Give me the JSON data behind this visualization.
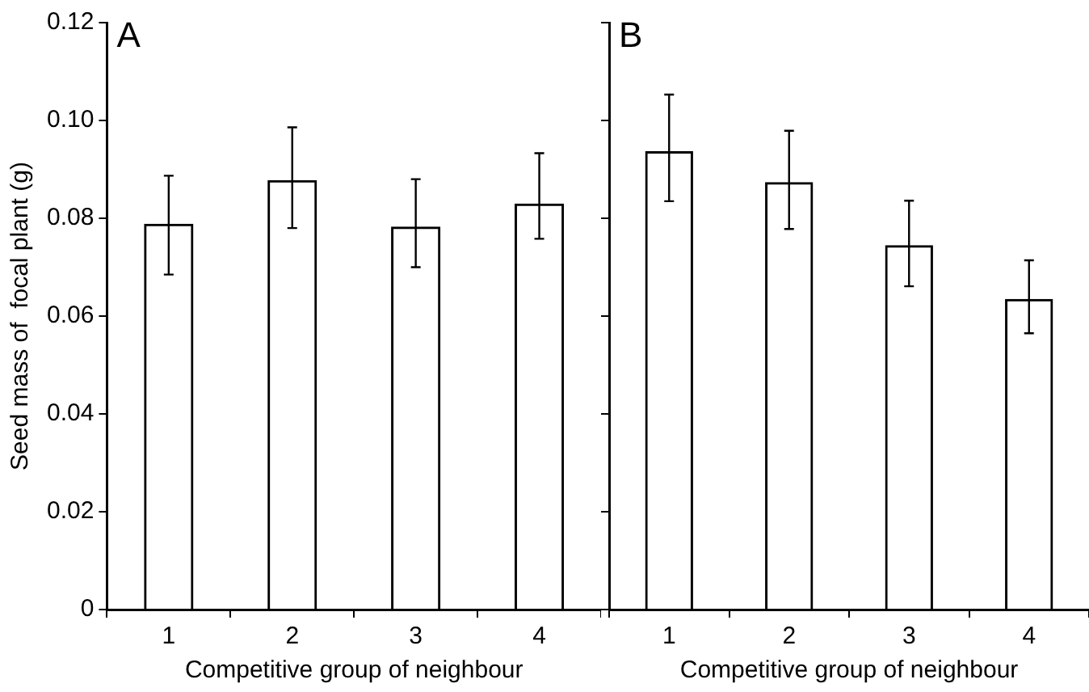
{
  "chart_data": [
    {
      "type": "bar",
      "title": "A",
      "xlabel": "Competitive group of neighbour",
      "ylabel": "Seed mass of  focal plant (g)",
      "categories": [
        "1",
        "2",
        "3",
        "4"
      ],
      "values": [
        0.0789,
        0.0878,
        0.0783,
        0.083
      ],
      "errors": [
        [
          0.0685,
          0.0887
        ],
        [
          0.078,
          0.0986
        ],
        [
          0.07,
          0.088
        ],
        [
          0.0758,
          0.0933
        ]
      ],
      "color": "#000000",
      "ylim": [
        0,
        0.12
      ],
      "yticks": [
        {
          "value": 0,
          "label": "0"
        },
        {
          "value": 0.02,
          "label": "0.02"
        },
        {
          "value": 0.04,
          "label": "0.04"
        },
        {
          "value": 0.06,
          "label": "0.06"
        },
        {
          "value": 0.08,
          "label": "0.08"
        },
        {
          "value": 0.1,
          "label": "0.10"
        },
        {
          "value": 0.12,
          "label": "0.12"
        }
      ]
    },
    {
      "type": "bar",
      "title": "B",
      "xlabel": "Competitive group of neighbour",
      "categories": [
        "1",
        "2",
        "3",
        "4"
      ],
      "values": [
        0.0937,
        0.0874,
        0.0745,
        0.0635
      ],
      "errors": [
        [
          0.0835,
          0.1053
        ],
        [
          0.0778,
          0.0979
        ],
        [
          0.0661,
          0.0836
        ],
        [
          0.0565,
          0.0714
        ]
      ],
      "color": "#000000",
      "ylim": [
        0,
        0.12
      ],
      "yticks": [
        0,
        0.02,
        0.04,
        0.06,
        0.08,
        0.1,
        0.12
      ],
      "tick_labels": "x"
    }
  ]
}
